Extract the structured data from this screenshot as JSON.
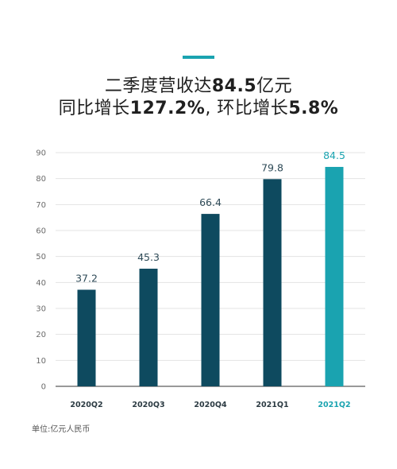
{
  "header": {
    "line1_prefix": "二季度营收达",
    "line1_value": "84.5",
    "line1_suffix": "亿元",
    "line2_prefix": "同比增长",
    "line2_value1": "127.2%",
    "line2_mid": ", 环比增长",
    "line2_value2": "5.8%"
  },
  "unit_note": "单位:亿元人民币",
  "colors": {
    "bar": "#0e4a5f",
    "highlight": "#1aa3b0",
    "grid": "#e3e3e3",
    "axis": "#333333"
  },
  "chart_data": {
    "type": "bar",
    "categories": [
      "2020Q2",
      "2020Q3",
      "2020Q4",
      "2021Q1",
      "2021Q2"
    ],
    "values": [
      37.2,
      45.3,
      66.4,
      79.8,
      84.5
    ],
    "data_labels": [
      "37.2",
      "45.3",
      "66.4",
      "79.8",
      "84.5"
    ],
    "highlight_index": 4,
    "ylim": [
      0,
      90
    ],
    "yticks": [
      0,
      10,
      20,
      30,
      40,
      50,
      60,
      70,
      80,
      90
    ],
    "grid": true,
    "legend": "none",
    "xlabel": "",
    "ylabel": ""
  }
}
